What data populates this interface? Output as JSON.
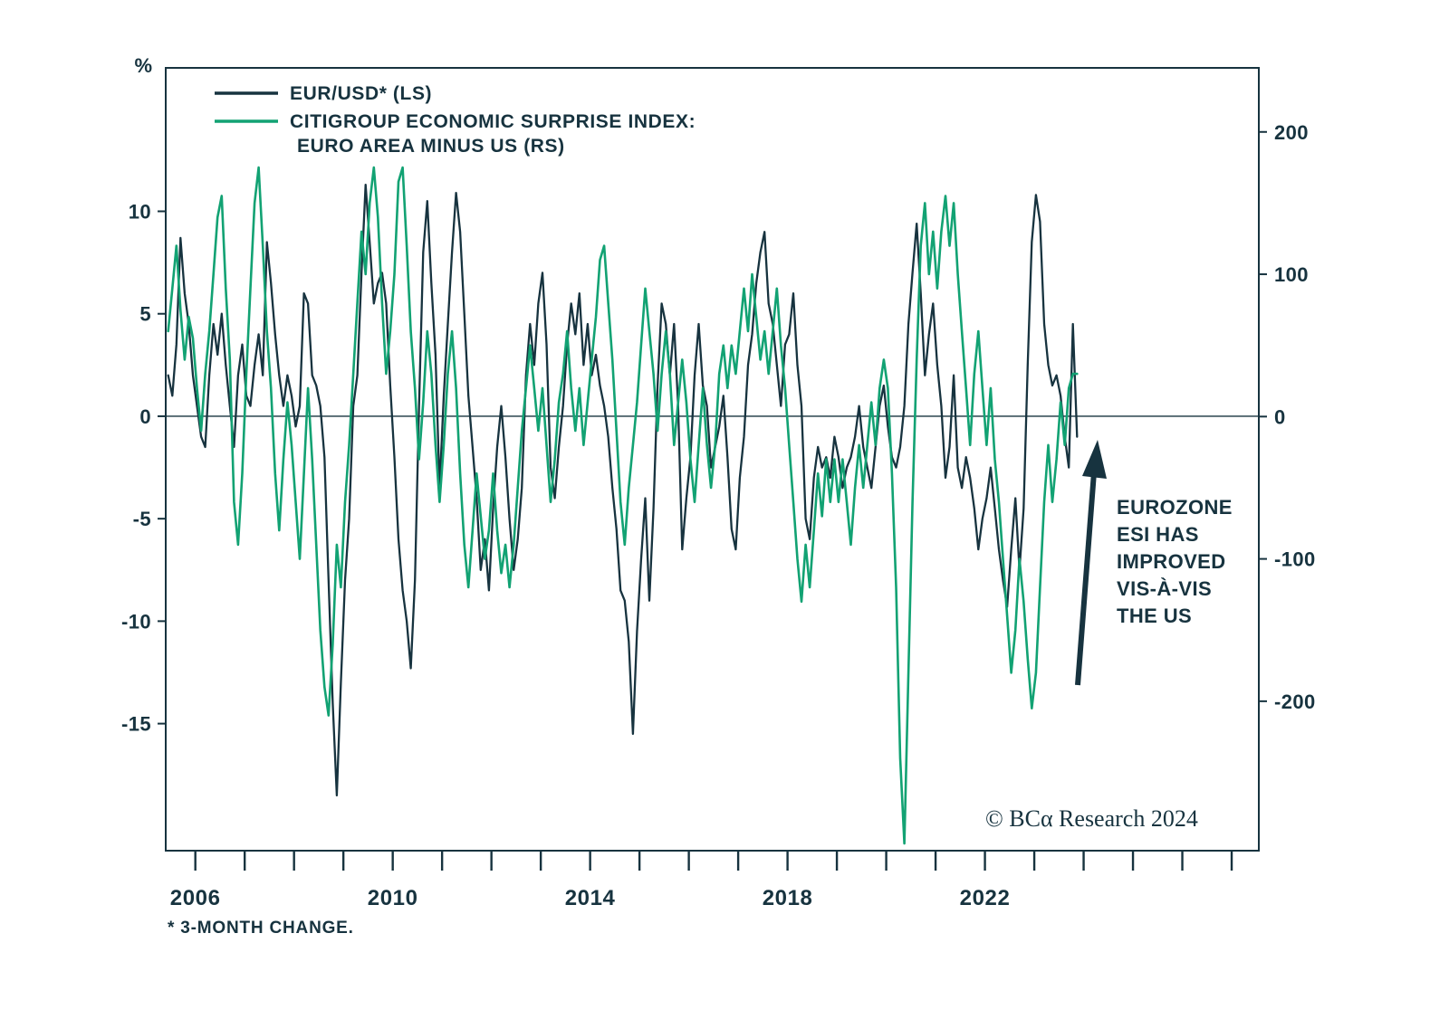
{
  "figure": {
    "percent_symbol": "%",
    "footnote": "* 3-MONTH CHANGE.",
    "copyright": "© BCα Research 2024"
  },
  "legend": {
    "eur_label": "EUR/USD* (LS)",
    "esi_label_line1": "CITIGROUP ECONOMIC SURPRISE INDEX:",
    "esi_label_line2": "EURO AREA MINUS US (RS)"
  },
  "annotation": {
    "lines": [
      "EUROZONE",
      "ESI HAS",
      "IMPROVED",
      "VIS-À-VIS",
      "THE US"
    ],
    "color": "#C8232C"
  },
  "chart_data": {
    "type": "line",
    "title": "",
    "grid": false,
    "zero_line": true,
    "legend_position": "top-left",
    "x_domain": [
      2005.4,
      2027.55
    ],
    "x_start": 2005.45,
    "x_step": 0.083333,
    "x_axis": {
      "year_tick_start": 2006,
      "year_tick_end": 2027,
      "labeled_years": [
        2006,
        2010,
        2014,
        2018,
        2022
      ]
    },
    "left_axis": {
      "label": "%",
      "ticks": [
        10,
        5,
        0,
        -5,
        -10,
        -15
      ],
      "range": [
        -21.2,
        17.0
      ]
    },
    "right_axis": {
      "ticks": [
        200,
        100,
        0,
        -100,
        -200
      ],
      "range": [
        -305,
        245
      ]
    },
    "series": [
      {
        "name": "EUR/USD* (LS)",
        "axis": "left",
        "color": "#17333F",
        "values": [
          2.0,
          1.0,
          3.5,
          8.7,
          6.0,
          4.5,
          2.0,
          0.5,
          -1.0,
          -1.5,
          2.0,
          4.5,
          3.0,
          5.0,
          2.5,
          0.5,
          -1.5,
          2.0,
          3.5,
          1.0,
          0.5,
          2.5,
          4.0,
          2.0,
          8.5,
          6.5,
          4.0,
          2.0,
          0.5,
          2.0,
          1.0,
          -0.5,
          0.5,
          6.0,
          5.5,
          2.0,
          1.5,
          0.5,
          -2.0,
          -8.0,
          -14.0,
          -18.5,
          -13.0,
          -8.0,
          -5.0,
          0.5,
          2.0,
          7.0,
          11.3,
          8.5,
          5.5,
          6.5,
          7.0,
          5.5,
          1.5,
          -2.0,
          -6.0,
          -8.5,
          -10.0,
          -12.3,
          -8.0,
          0.5,
          8.0,
          10.5,
          6.5,
          3.0,
          -3.5,
          1.0,
          4.5,
          8.0,
          10.9,
          9.0,
          5.0,
          1.0,
          -1.5,
          -4.0,
          -7.5,
          -6.0,
          -8.5,
          -4.5,
          -1.5,
          0.5,
          -2.0,
          -5.0,
          -7.5,
          -6.0,
          -3.5,
          2.0,
          4.5,
          2.5,
          5.5,
          7.0,
          3.5,
          -2.5,
          -4.0,
          -1.5,
          0.5,
          3.5,
          5.5,
          4.0,
          6.0,
          2.5,
          4.5,
          2.0,
          3.0,
          1.5,
          0.5,
          -1.0,
          -3.5,
          -5.5,
          -8.5,
          -9.0,
          -11.0,
          -15.5,
          -10.5,
          -7.0,
          -4.0,
          -9.0,
          -4.5,
          1.5,
          5.5,
          4.5,
          2.0,
          4.5,
          0.5,
          -6.5,
          -4.0,
          -2.0,
          2.0,
          4.5,
          1.5,
          0.5,
          -2.5,
          -1.5,
          -0.5,
          1.0,
          -2.0,
          -5.5,
          -6.5,
          -3.0,
          -1.0,
          2.5,
          4.0,
          6.5,
          8.0,
          9.0,
          5.5,
          4.5,
          2.5,
          0.5,
          3.5,
          4.0,
          6.0,
          2.5,
          0.5,
          -5.0,
          -6.0,
          -3.0,
          -1.5,
          -2.5,
          -2.0,
          -3.0,
          -1.0,
          -2.0,
          -3.5,
          -2.5,
          -2.0,
          -1.0,
          0.5,
          -1.5,
          -2.5,
          -3.5,
          -1.5,
          0.5,
          1.5,
          -0.5,
          -2.0,
          -2.5,
          -1.5,
          0.5,
          4.5,
          7.0,
          9.4,
          6.0,
          2.0,
          4.0,
          5.5,
          2.5,
          0.5,
          -3.0,
          -1.5,
          2.0,
          -2.5,
          -3.5,
          -2.0,
          -3.0,
          -4.5,
          -6.5,
          -5.0,
          -4.0,
          -2.5,
          -4.5,
          -6.5,
          -8.0,
          -9.3,
          -6.5,
          -4.0,
          -7.5,
          -4.5,
          2.5,
          8.5,
          10.8,
          9.5,
          4.5,
          2.5,
          1.5,
          2.0,
          1.0,
          -1.0,
          -2.5,
          4.5,
          -1.0
        ]
      },
      {
        "name": "CITIGROUP ECONOMIC SURPRISE INDEX: EURO AREA MINUS US (RS)",
        "axis": "right",
        "color": "#12A273",
        "values": [
          60,
          90,
          120,
          75,
          40,
          70,
          55,
          20,
          -10,
          30,
          60,
          100,
          140,
          155,
          90,
          40,
          -60,
          -90,
          -40,
          30,
          90,
          150,
          175,
          120,
          60,
          20,
          -40,
          -80,
          -30,
          10,
          -20,
          -60,
          -100,
          -40,
          20,
          -30,
          -90,
          -150,
          -190,
          -210,
          -160,
          -90,
          -120,
          -60,
          -20,
          30,
          80,
          130,
          100,
          150,
          175,
          140,
          80,
          30,
          60,
          100,
          165,
          175,
          120,
          60,
          20,
          -30,
          10,
          60,
          30,
          -20,
          -60,
          -20,
          30,
          60,
          20,
          -40,
          -90,
          -120,
          -80,
          -40,
          -70,
          -100,
          -80,
          -40,
          -80,
          -110,
          -90,
          -120,
          -90,
          -50,
          -10,
          20,
          50,
          20,
          -10,
          20,
          -20,
          -60,
          -30,
          10,
          30,
          60,
          20,
          -10,
          20,
          -20,
          10,
          40,
          70,
          110,
          120,
          80,
          40,
          -10,
          -60,
          -90,
          -50,
          -20,
          10,
          50,
          90,
          60,
          30,
          -10,
          30,
          60,
          30,
          -20,
          10,
          40,
          10,
          -30,
          -60,
          -20,
          20,
          -20,
          -50,
          -20,
          30,
          50,
          20,
          50,
          30,
          60,
          90,
          60,
          100,
          70,
          40,
          60,
          30,
          60,
          90,
          50,
          20,
          -20,
          -60,
          -100,
          -130,
          -90,
          -120,
          -80,
          -40,
          -70,
          -30,
          -60,
          -30,
          -60,
          -30,
          -60,
          -90,
          -50,
          -20,
          -50,
          -20,
          10,
          -20,
          20,
          40,
          20,
          -40,
          -120,
          -240,
          -300,
          -180,
          -60,
          40,
          120,
          150,
          100,
          130,
          90,
          130,
          155,
          120,
          150,
          100,
          60,
          20,
          -20,
          30,
          60,
          20,
          -20,
          20,
          -30,
          -60,
          -100,
          -140,
          -180,
          -150,
          -100,
          -130,
          -170,
          -205,
          -180,
          -120,
          -60,
          -20,
          -60,
          -30,
          10,
          -20,
          20,
          30,
          30
        ]
      }
    ]
  }
}
